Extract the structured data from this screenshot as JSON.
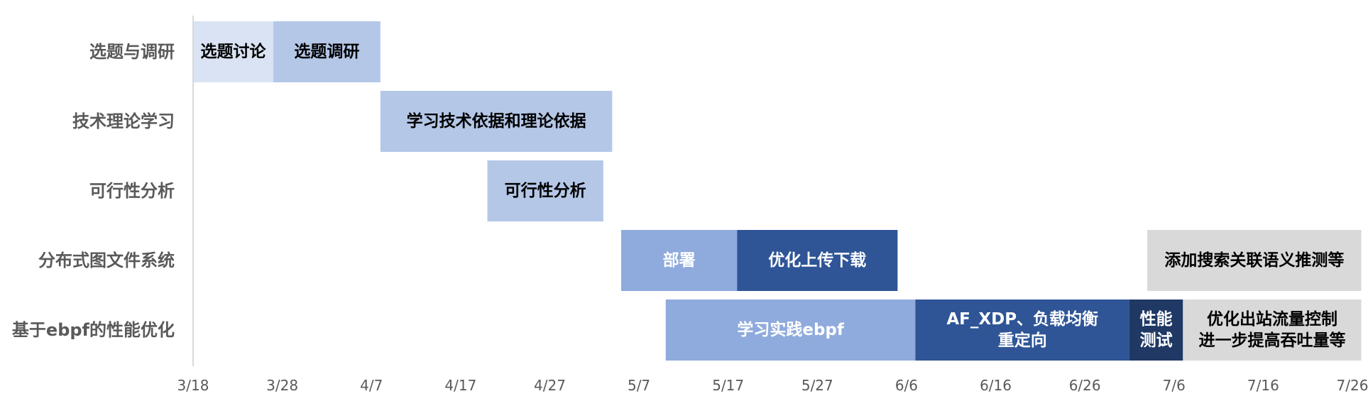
{
  "chart_data": {
    "type": "bar",
    "orientation": "horizontal-gantt",
    "title": "",
    "xlabel": "",
    "ylabel": "",
    "x_start": "3/18",
    "x_unit": "days since 3/18",
    "xlim": [
      0,
      130
    ],
    "x_ticks": [
      {
        "label": "3/18",
        "day": 0
      },
      {
        "label": "3/28",
        "day": 10
      },
      {
        "label": "4/7",
        "day": 20
      },
      {
        "label": "4/17",
        "day": 30
      },
      {
        "label": "4/27",
        "day": 40
      },
      {
        "label": "5/7",
        "day": 50
      },
      {
        "label": "5/17",
        "day": 60
      },
      {
        "label": "5/27",
        "day": 70
      },
      {
        "label": "6/6",
        "day": 80
      },
      {
        "label": "6/16",
        "day": 90
      },
      {
        "label": "6/26",
        "day": 100
      },
      {
        "label": "7/6",
        "day": 110
      },
      {
        "label": "7/16",
        "day": 120
      },
      {
        "label": "7/26",
        "day": 130
      }
    ],
    "categories": [
      "选题与调研",
      "技术理论学习",
      "可行性分析",
      "分布式图文件系统",
      "基于ebpf的性能优化"
    ],
    "tasks": [
      {
        "category": 0,
        "label": [
          "选题讨论"
        ],
        "start": 0,
        "duration": 9,
        "color": "#dae3f3",
        "text_color": "#000000"
      },
      {
        "category": 0,
        "label": [
          "选题调研"
        ],
        "start": 9,
        "duration": 12,
        "color": "#b4c7e7",
        "text_color": "#000000"
      },
      {
        "category": 1,
        "label": [
          "学习技术依据和理论依据"
        ],
        "start": 21,
        "duration": 26,
        "color": "#b4c7e7",
        "text_color": "#000000"
      },
      {
        "category": 2,
        "label": [
          "可行性分析"
        ],
        "start": 33,
        "duration": 13,
        "color": "#b4c7e7",
        "text_color": "#000000"
      },
      {
        "category": 3,
        "label": [
          "部署"
        ],
        "start": 48,
        "duration": 13,
        "color": "#8faadc",
        "text_color": "#ffffff"
      },
      {
        "category": 3,
        "label": [
          "优化上传下载"
        ],
        "start": 61,
        "duration": 18,
        "color": "#2f5597",
        "text_color": "#ffffff"
      },
      {
        "category": 3,
        "label": [
          "添加搜索关联语义推测等"
        ],
        "start": 107,
        "duration": 24,
        "color": "#d9d9d9",
        "text_color": "#000000"
      },
      {
        "category": 4,
        "label": [
          "学习实践ebpf"
        ],
        "start": 53,
        "duration": 28,
        "color": "#8faadc",
        "text_color": "#ffffff"
      },
      {
        "category": 4,
        "label": [
          "AF_XDP、负载均衡",
          "重定向"
        ],
        "start": 81,
        "duration": 24,
        "color": "#2f5597",
        "text_color": "#ffffff"
      },
      {
        "category": 4,
        "label": [
          "性能",
          "测试"
        ],
        "start": 105,
        "duration": 6,
        "color": "#1f3864",
        "text_color": "#ffffff"
      },
      {
        "category": 4,
        "label": [
          "优化出站流量控制",
          "进一步提高吞吐量等"
        ],
        "start": 111,
        "duration": 20,
        "color": "#d9d9d9",
        "text_color": "#000000"
      }
    ]
  }
}
